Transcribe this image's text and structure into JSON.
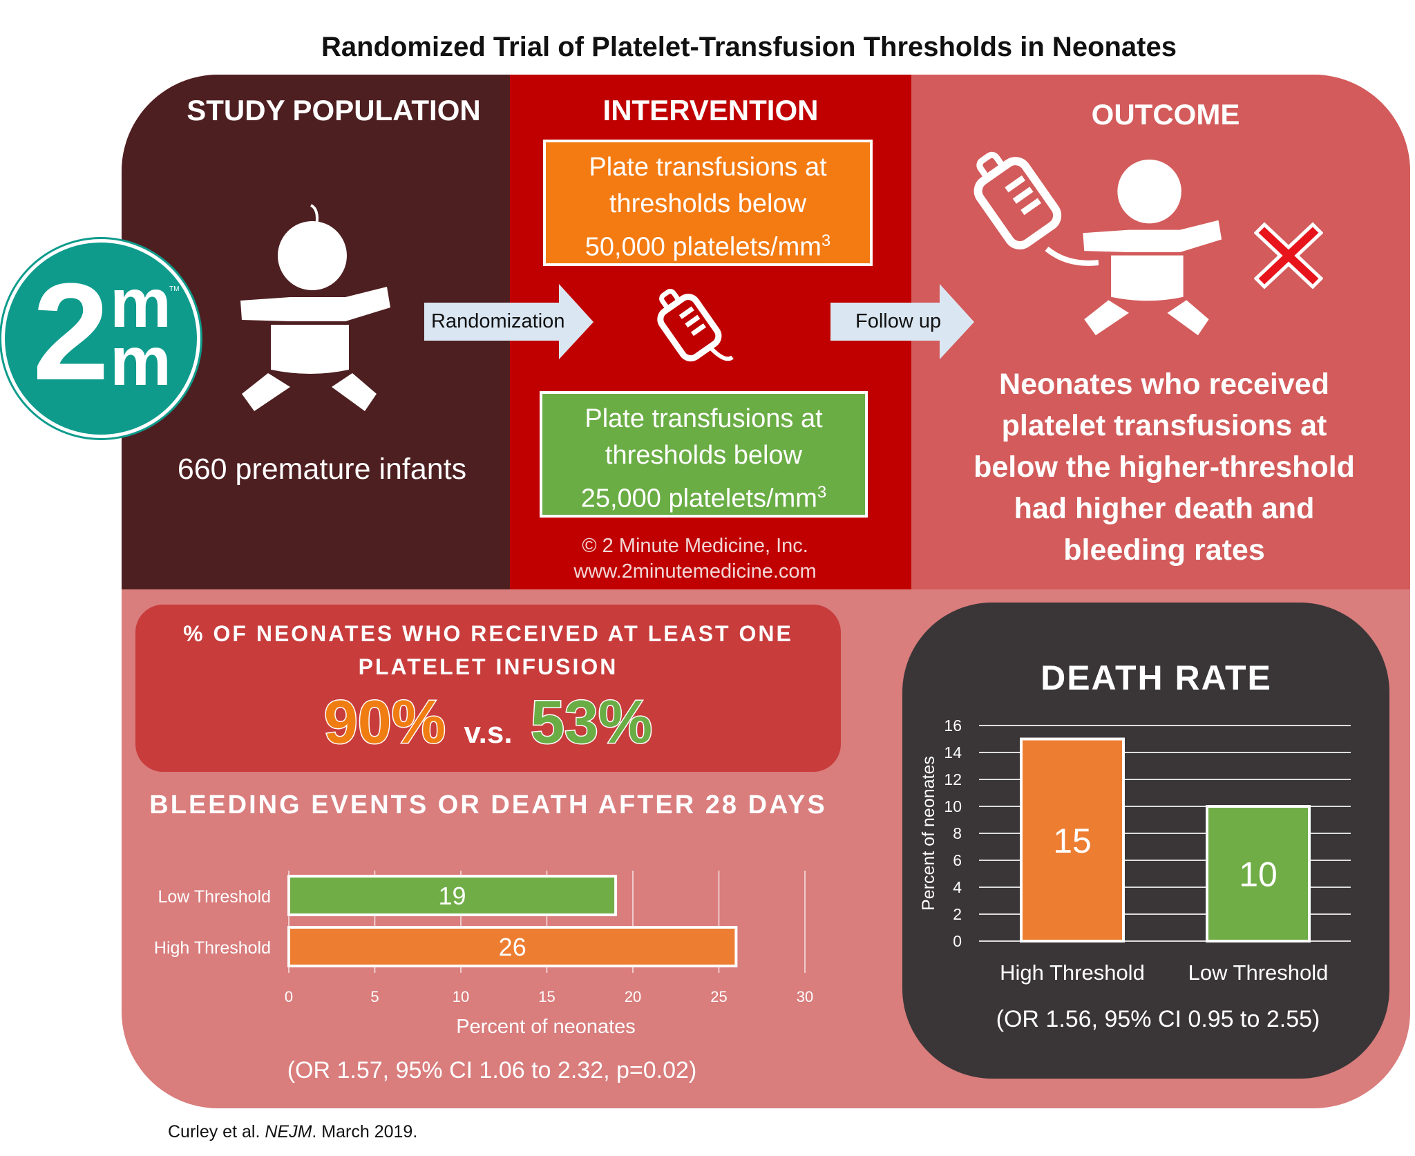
{
  "title": "Randomized Trial of Platelet-Transfusion Thresholds in Neonates",
  "logo": {
    "text_top": "2",
    "text_m1": "m",
    "text_m2": "m",
    "tm": "TM"
  },
  "study_population": {
    "heading": "STUDY POPULATION",
    "caption": "660 premature infants",
    "icon": "baby-icon"
  },
  "randomization_label": "Randomization",
  "intervention": {
    "heading": "INTERVENTION",
    "high_box": [
      "Plate transfusions at",
      "thresholds below",
      "50,000 platelets/mm",
      "3"
    ],
    "low_box": [
      "Plate transfusions at",
      "thresholds below",
      "25,000 platelets/mm",
      "3"
    ],
    "icon": "blood-bag-icon",
    "copyright": "© 2 Minute Medicine, Inc.",
    "website": "www.2minutemedicine.com"
  },
  "follow_up_label": "Follow up",
  "outcome": {
    "heading": "OUTCOME",
    "text": [
      "Neonates who received",
      "platelet transfusions at",
      "below the higher-threshold",
      "had higher death and",
      "bleeding rates"
    ],
    "icons": [
      "blood-bag-icon",
      "baby-icon",
      "red-x-icon"
    ]
  },
  "infusion": {
    "heading": [
      "% OF NEONATES  WHO RECEIVED AT LEAST ONE",
      "PLATELET INFUSION"
    ],
    "high": "90%",
    "vs": "v.s.",
    "low": "53%"
  },
  "colors": {
    "high": "#ED7D31",
    "low": "#70AD47",
    "dark": "#4E1F21",
    "red": "#C00000",
    "outcome": "#D35B5B",
    "pink": "#D97D7D",
    "teal": "#0E9B8C"
  },
  "chart_data": [
    {
      "type": "bar",
      "orientation": "horizontal",
      "title": "BLEEDING EVENTS OR DEATH AFTER 28 DAYS",
      "categories": [
        "Low Threshold",
        "High Threshold"
      ],
      "values": [
        19,
        26
      ],
      "data_labels": [
        "19",
        "26"
      ],
      "xlabel": "Percent of neonates",
      "xlim": [
        0,
        30
      ],
      "xticks": [
        "0",
        "5",
        "10",
        "15",
        "20",
        "25",
        "30"
      ],
      "grid": true,
      "note": "(OR 1.57, 95% CI 1.06 to 2.32, p=0.02)"
    },
    {
      "type": "bar",
      "title": "DEATH RATE",
      "categories": [
        "High Threshold",
        "Low Threshold"
      ],
      "values": [
        15,
        10
      ],
      "data_labels": [
        "15",
        "10"
      ],
      "ylabel": "Percent of neonates",
      "ylim": [
        0,
        16
      ],
      "yticks": [
        "0",
        "2",
        "4",
        "6",
        "8",
        "10",
        "12",
        "14",
        "16"
      ],
      "grid": true,
      "note": "(OR 1.56, 95% CI 0.95 to 2.55)"
    }
  ],
  "citation": {
    "authors": "Curley et al. ",
    "journal": "NEJM",
    "date": ". March 2019."
  }
}
